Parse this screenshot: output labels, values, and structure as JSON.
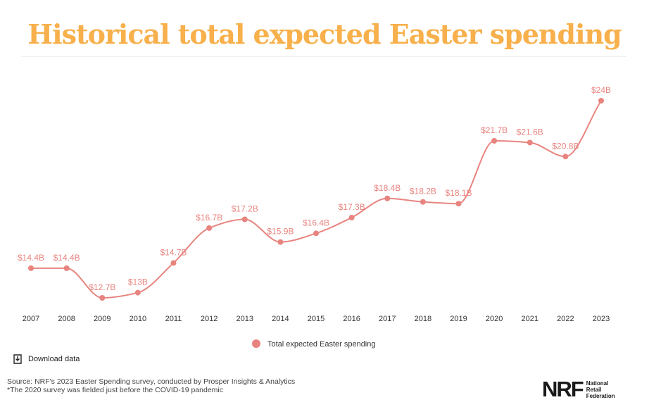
{
  "colors": {
    "title": "#f7b04b",
    "series": "#e8847f",
    "label": "#e8847f",
    "axis_text": "#333333"
  },
  "chart_data": {
    "type": "line",
    "title": "Historical total expected Easter spending",
    "categories": [
      "2007",
      "2008",
      "2009",
      "2010",
      "2011",
      "2012",
      "2013",
      "2014",
      "2015",
      "2016",
      "2017",
      "2018",
      "2019",
      "2020",
      "2021",
      "2022",
      "2023"
    ],
    "series": [
      {
        "name": "Total expected Easter spending",
        "values": [
          14.4,
          14.4,
          12.7,
          13,
          14.7,
          16.7,
          17.2,
          15.9,
          16.4,
          17.3,
          18.4,
          18.2,
          18.1,
          21.7,
          21.6,
          20.8,
          24
        ],
        "labels": [
          "$14.4B",
          "$14.4B",
          "$12.7B",
          "$13B",
          "$14.7B",
          "$16.7B",
          "$17.2B",
          "$15.9B",
          "$16.4B",
          "$17.3B",
          "$18.4B",
          "$18.2B",
          "$18.1B",
          "$21.7B",
          "$21.6B",
          "$20.8B",
          "$24B"
        ]
      }
    ],
    "xlabel": "",
    "ylabel": "",
    "grid": false,
    "legend": "bottom-center",
    "smooth": true
  },
  "download": {
    "label": "Download data",
    "icon": "download-icon"
  },
  "footer": {
    "source": "Source: NRF's 2023 Easter Spending survey, conducted by Prosper Insights & Analytics",
    "note": "*The 2020 survey was fielded just before the COVID-19 pandemic"
  },
  "logo": {
    "mark": "NRF",
    "line1": "National",
    "line2": "Retail",
    "line3": "Federation"
  }
}
